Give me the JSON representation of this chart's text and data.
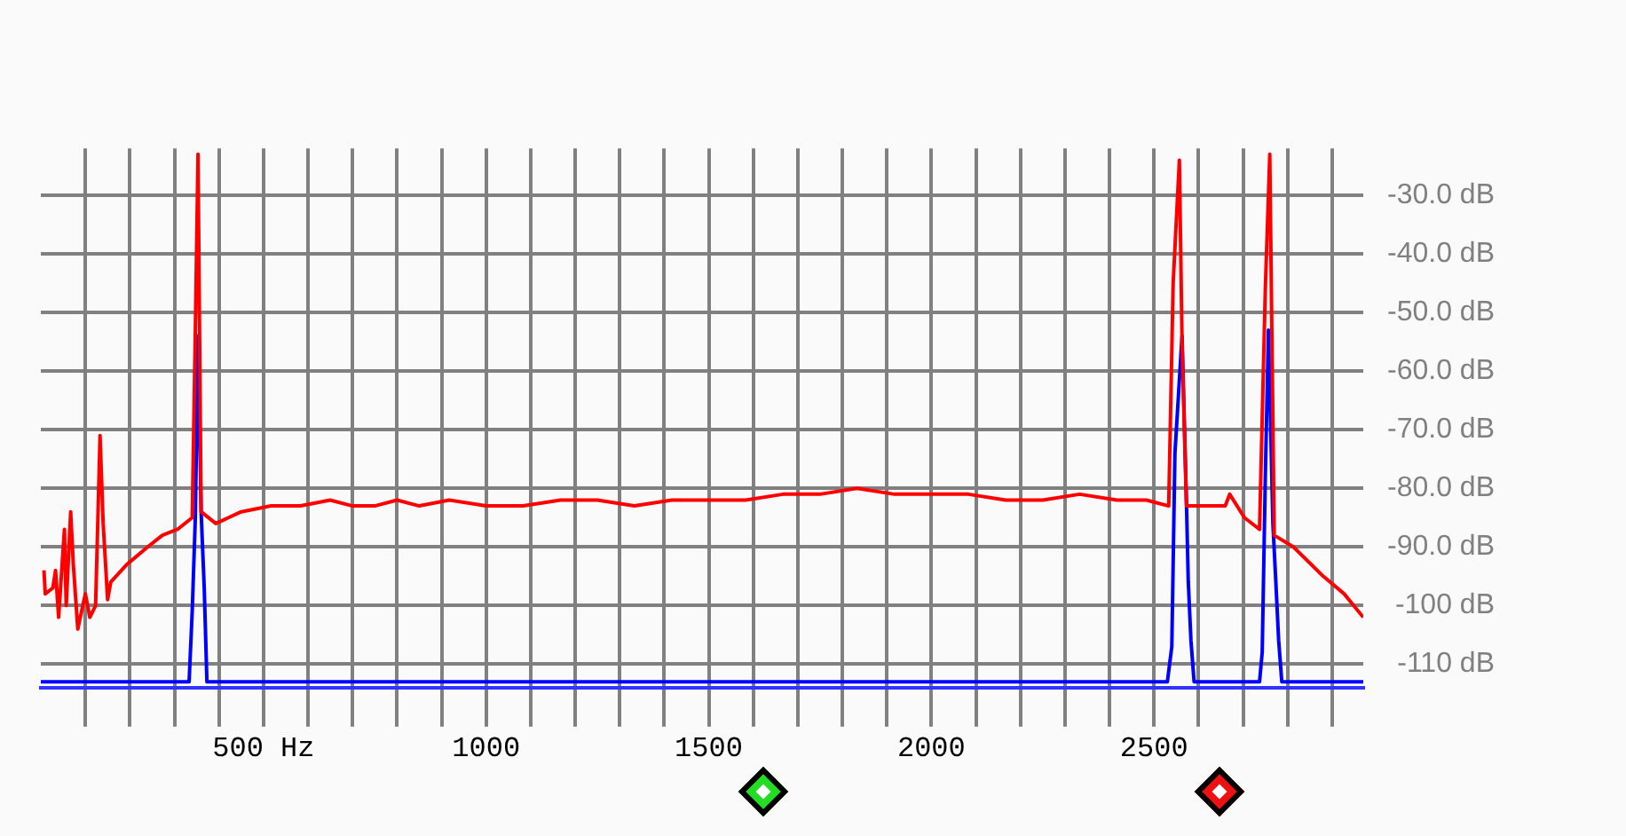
{
  "chart_data": {
    "type": "line",
    "xlim": [
      0,
      2970
    ],
    "ylim": [
      -114,
      -22
    ],
    "grid": true,
    "xticks": [
      {
        "value": 100,
        "label": null
      },
      {
        "value": 200,
        "label": null
      },
      {
        "value": 300,
        "label": null
      },
      {
        "value": 400,
        "label": null
      },
      {
        "value": 500,
        "label": "500 Hz"
      },
      {
        "value": 600,
        "label": null
      },
      {
        "value": 700,
        "label": null
      },
      {
        "value": 800,
        "label": null
      },
      {
        "value": 900,
        "label": null
      },
      1000,
      {
        "value": 1100,
        "label": null
      },
      {
        "value": 1200,
        "label": null
      },
      {
        "value": 1300,
        "label": null
      },
      {
        "value": 1400,
        "label": null
      },
      1500,
      {
        "value": 1600,
        "label": null
      },
      {
        "value": 1700,
        "label": null
      },
      {
        "value": 1800,
        "label": null
      },
      {
        "value": 1900,
        "label": null
      },
      2000,
      {
        "value": 2100,
        "label": null
      },
      {
        "value": 2200,
        "label": null
      },
      {
        "value": 2300,
        "label": null
      },
      {
        "value": 2400,
        "label": null
      },
      2500,
      {
        "value": 2600,
        "label": null
      },
      {
        "value": 2700,
        "label": null
      },
      {
        "value": 2800,
        "label": null
      },
      {
        "value": 2900,
        "label": null
      }
    ],
    "yticks": [
      {
        "value": -30,
        "label": "-30.0 dB"
      },
      {
        "value": -40,
        "label": "-40.0 dB"
      },
      {
        "value": -50,
        "label": "-50.0 dB"
      },
      {
        "value": -60,
        "label": "-60.0 dB"
      },
      {
        "value": -70,
        "label": "-70.0 dB"
      },
      {
        "value": -80,
        "label": "-80.0 dB"
      },
      {
        "value": -90,
        "label": "-90.0 dB"
      },
      {
        "value": -100,
        "label": "-100 dB"
      },
      {
        "value": -110,
        "label": "-110 dB"
      }
    ],
    "series": [
      {
        "color": "#ff0000",
        "x": [
          7,
          10,
          27,
          33,
          40,
          53,
          57,
          67,
          73,
          83,
          100,
          110,
          123,
          133,
          140,
          150,
          157,
          193,
          240,
          273,
          307,
          340,
          347,
          353,
          360,
          393,
          450,
          517,
          583,
          650,
          700,
          750,
          800,
          850,
          917,
          1000,
          1083,
          1167,
          1250,
          1333,
          1417,
          1500,
          1583,
          1667,
          1750,
          1833,
          1917,
          2000,
          2083,
          2167,
          2250,
          2333,
          2417,
          2483,
          2533,
          2543,
          2557,
          2563,
          2573,
          2580,
          2620,
          2660,
          2670,
          2703,
          2737,
          2750,
          2760,
          2770,
          2813,
          2880,
          2927,
          2970
        ],
        "values": [
          -94,
          -98,
          -97,
          -94,
          -102,
          -87,
          -100,
          -84,
          -93,
          -104,
          -98,
          -102,
          -100,
          -71,
          -86,
          -99,
          -96,
          -93,
          -90,
          -88,
          -87,
          -85,
          -53,
          -23,
          -84,
          -86,
          -84,
          -83,
          -83,
          -82,
          -83,
          -83,
          -82,
          -83,
          -82,
          -83,
          -83,
          -82,
          -82,
          -83,
          -82,
          -82,
          -82,
          -81,
          -81,
          -80,
          -81,
          -81,
          -81,
          -82,
          -82,
          -81,
          -82,
          -82,
          -83,
          -45,
          -24,
          -55,
          -83,
          -83,
          -83,
          -83,
          -81,
          -85,
          -87,
          -46,
          -23,
          -88,
          -90,
          -95,
          -98,
          -102
        ]
      },
      {
        "color": "#0000ff",
        "x": [
          0,
          333,
          340,
          347,
          353,
          360,
          367,
          373,
          2530,
          2540,
          2547,
          2563,
          2573,
          2577,
          2583,
          2590,
          2737,
          2743,
          2750,
          2757,
          2767,
          2773,
          2780,
          2787,
          2970
        ],
        "values": [
          -113,
          -113,
          -101,
          -85,
          -54,
          -84,
          -97,
          -113,
          -113,
          -107,
          -74,
          -54,
          -83,
          -96,
          -106,
          -113,
          -113,
          -108,
          -78,
          -53,
          -86,
          -95,
          -106,
          -113,
          -113
        ]
      }
    ]
  }
}
